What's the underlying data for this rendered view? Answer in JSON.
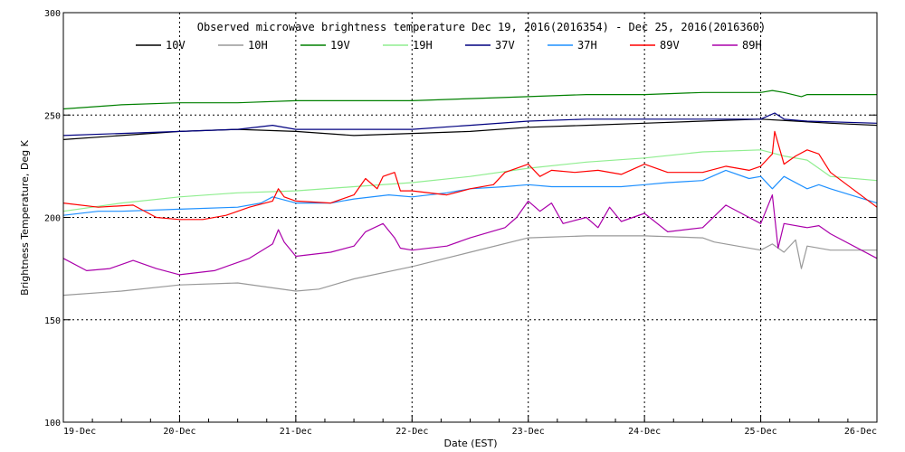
{
  "chart_data": {
    "type": "line",
    "title": "Observed microwave brightness temperature Dec 19, 2016(2016354) - Dec 25, 2016(2016360)",
    "xlabel": "Date (EST)",
    "ylabel": "Brightness Temperature, Deg K",
    "xlim": [
      0,
      7
    ],
    "ylim": [
      100,
      300
    ],
    "x_ticks": [
      {
        "x": 0,
        "label": "19-Dec"
      },
      {
        "x": 1,
        "label": "20-Dec"
      },
      {
        "x": 2,
        "label": "21-Dec"
      },
      {
        "x": 3,
        "label": "22-Dec"
      },
      {
        "x": 4,
        "label": "23-Dec"
      },
      {
        "x": 5,
        "label": "24-Dec"
      },
      {
        "x": 6,
        "label": "25-Dec"
      },
      {
        "x": 7,
        "label": "26-Dec"
      }
    ],
    "y_ticks": [
      {
        "y": 100,
        "label": "100"
      },
      {
        "y": 150,
        "label": "150"
      },
      {
        "y": 200,
        "label": "200"
      },
      {
        "y": 250,
        "label": "250"
      },
      {
        "y": 300,
        "label": "300"
      }
    ],
    "grid": true,
    "legend_position": "top",
    "series": [
      {
        "name": "10V",
        "color": "#000000",
        "points": [
          [
            0,
            238
          ],
          [
            0.5,
            240
          ],
          [
            1,
            242
          ],
          [
            1.5,
            243
          ],
          [
            2,
            242
          ],
          [
            2.5,
            240
          ],
          [
            3,
            241
          ],
          [
            3.5,
            242
          ],
          [
            4,
            244
          ],
          [
            4.5,
            245
          ],
          [
            5,
            246
          ],
          [
            5.5,
            247
          ],
          [
            6,
            248
          ],
          [
            6.3,
            247
          ],
          [
            6.6,
            246
          ],
          [
            7,
            245
          ]
        ]
      },
      {
        "name": "10H",
        "color": "#999999",
        "points": [
          [
            0,
            162
          ],
          [
            0.5,
            164
          ],
          [
            1,
            167
          ],
          [
            1.5,
            168
          ],
          [
            2,
            164
          ],
          [
            2.2,
            165
          ],
          [
            2.5,
            170
          ],
          [
            3,
            176
          ],
          [
            3.5,
            183
          ],
          [
            4,
            190
          ],
          [
            4.5,
            191
          ],
          [
            5,
            191
          ],
          [
            5.5,
            190
          ],
          [
            5.6,
            188
          ],
          [
            6,
            184
          ],
          [
            6.1,
            187
          ],
          [
            6.2,
            183
          ],
          [
            6.3,
            189
          ],
          [
            6.35,
            175
          ],
          [
            6.4,
            186
          ],
          [
            6.6,
            184
          ],
          [
            7,
            184
          ]
        ]
      },
      {
        "name": "19V",
        "color": "#008000",
        "points": [
          [
            0,
            253
          ],
          [
            0.5,
            255
          ],
          [
            1,
            256
          ],
          [
            1.5,
            256
          ],
          [
            2,
            257
          ],
          [
            2.5,
            257
          ],
          [
            3,
            257
          ],
          [
            3.5,
            258
          ],
          [
            4,
            259
          ],
          [
            4.5,
            260
          ],
          [
            5,
            260
          ],
          [
            5.5,
            261
          ],
          [
            6,
            261
          ],
          [
            6.1,
            262
          ],
          [
            6.2,
            261
          ],
          [
            6.35,
            259
          ],
          [
            6.4,
            260
          ],
          [
            7,
            260
          ]
        ]
      },
      {
        "name": "19H",
        "color": "#90ee90",
        "points": [
          [
            0,
            203
          ],
          [
            0.5,
            207
          ],
          [
            1,
            210
          ],
          [
            1.5,
            212
          ],
          [
            2,
            213
          ],
          [
            2.5,
            215
          ],
          [
            3,
            217
          ],
          [
            3.5,
            220
          ],
          [
            4,
            224
          ],
          [
            4.5,
            227
          ],
          [
            5,
            229
          ],
          [
            5.5,
            232
          ],
          [
            6,
            233
          ],
          [
            6.2,
            230
          ],
          [
            6.4,
            228
          ],
          [
            6.6,
            220
          ],
          [
            7,
            218
          ]
        ]
      },
      {
        "name": "37V",
        "color": "#000080",
        "points": [
          [
            0,
            240
          ],
          [
            0.5,
            241
          ],
          [
            1,
            242
          ],
          [
            1.5,
            243
          ],
          [
            1.8,
            245
          ],
          [
            2,
            243
          ],
          [
            2.5,
            243
          ],
          [
            3,
            243
          ],
          [
            3.5,
            245
          ],
          [
            4,
            247
          ],
          [
            4.5,
            248
          ],
          [
            5,
            248
          ],
          [
            5.5,
            248
          ],
          [
            6,
            248
          ],
          [
            6.12,
            251
          ],
          [
            6.2,
            248
          ],
          [
            6.4,
            247
          ],
          [
            7,
            246
          ]
        ]
      },
      {
        "name": "37H",
        "color": "#1e90ff",
        "points": [
          [
            0,
            201
          ],
          [
            0.3,
            203
          ],
          [
            0.5,
            203
          ],
          [
            1,
            204
          ],
          [
            1.5,
            205
          ],
          [
            1.7,
            207
          ],
          [
            1.8,
            210
          ],
          [
            2,
            207
          ],
          [
            2.3,
            207
          ],
          [
            2.5,
            209
          ],
          [
            2.8,
            211
          ],
          [
            3,
            210
          ],
          [
            3.3,
            212
          ],
          [
            3.5,
            214
          ],
          [
            3.8,
            215
          ],
          [
            4,
            216
          ],
          [
            4.2,
            215
          ],
          [
            4.5,
            215
          ],
          [
            4.8,
            215
          ],
          [
            5,
            216
          ],
          [
            5.2,
            217
          ],
          [
            5.5,
            218
          ],
          [
            5.7,
            223
          ],
          [
            5.9,
            219
          ],
          [
            6,
            220
          ],
          [
            6.1,
            214
          ],
          [
            6.2,
            220
          ],
          [
            6.4,
            214
          ],
          [
            6.5,
            216
          ],
          [
            6.6,
            214
          ],
          [
            7,
            207
          ]
        ]
      },
      {
        "name": "89V",
        "color": "#ff0000",
        "points": [
          [
            0,
            207
          ],
          [
            0.3,
            205
          ],
          [
            0.6,
            206
          ],
          [
            0.8,
            200
          ],
          [
            1,
            199
          ],
          [
            1.2,
            199
          ],
          [
            1.4,
            201
          ],
          [
            1.6,
            205
          ],
          [
            1.8,
            208
          ],
          [
            1.85,
            214
          ],
          [
            1.9,
            210
          ],
          [
            2,
            208
          ],
          [
            2.3,
            207
          ],
          [
            2.5,
            211
          ],
          [
            2.6,
            219
          ],
          [
            2.7,
            214
          ],
          [
            2.75,
            220
          ],
          [
            2.85,
            222
          ],
          [
            2.9,
            213
          ],
          [
            3,
            213
          ],
          [
            3.3,
            211
          ],
          [
            3.5,
            214
          ],
          [
            3.7,
            216
          ],
          [
            3.8,
            222
          ],
          [
            4,
            226
          ],
          [
            4.1,
            220
          ],
          [
            4.2,
            223
          ],
          [
            4.4,
            222
          ],
          [
            4.6,
            223
          ],
          [
            4.8,
            221
          ],
          [
            5,
            226
          ],
          [
            5.2,
            222
          ],
          [
            5.5,
            222
          ],
          [
            5.7,
            225
          ],
          [
            5.9,
            223
          ],
          [
            6,
            225
          ],
          [
            6.1,
            231
          ],
          [
            6.12,
            242
          ],
          [
            6.2,
            226
          ],
          [
            6.3,
            230
          ],
          [
            6.4,
            233
          ],
          [
            6.5,
            231
          ],
          [
            6.6,
            222
          ],
          [
            7,
            205
          ]
        ]
      },
      {
        "name": "89H",
        "color": "#aa00aa",
        "points": [
          [
            0,
            180
          ],
          [
            0.2,
            174
          ],
          [
            0.4,
            175
          ],
          [
            0.6,
            179
          ],
          [
            0.8,
            175
          ],
          [
            1,
            172
          ],
          [
            1.3,
            174
          ],
          [
            1.6,
            180
          ],
          [
            1.8,
            187
          ],
          [
            1.85,
            194
          ],
          [
            1.9,
            188
          ],
          [
            2,
            181
          ],
          [
            2.3,
            183
          ],
          [
            2.5,
            186
          ],
          [
            2.6,
            193
          ],
          [
            2.75,
            197
          ],
          [
            2.85,
            190
          ],
          [
            2.9,
            185
          ],
          [
            3,
            184
          ],
          [
            3.3,
            186
          ],
          [
            3.5,
            190
          ],
          [
            3.8,
            195
          ],
          [
            3.9,
            200
          ],
          [
            4,
            208
          ],
          [
            4.1,
            203
          ],
          [
            4.2,
            207
          ],
          [
            4.3,
            197
          ],
          [
            4.5,
            200
          ],
          [
            4.6,
            195
          ],
          [
            4.7,
            205
          ],
          [
            4.8,
            198
          ],
          [
            5,
            202
          ],
          [
            5.2,
            193
          ],
          [
            5.5,
            195
          ],
          [
            5.7,
            206
          ],
          [
            5.9,
            200
          ],
          [
            6,
            197
          ],
          [
            6.1,
            211
          ],
          [
            6.15,
            185
          ],
          [
            6.2,
            197
          ],
          [
            6.4,
            195
          ],
          [
            6.5,
            196
          ],
          [
            6.6,
            192
          ],
          [
            7,
            180
          ]
        ]
      }
    ]
  }
}
